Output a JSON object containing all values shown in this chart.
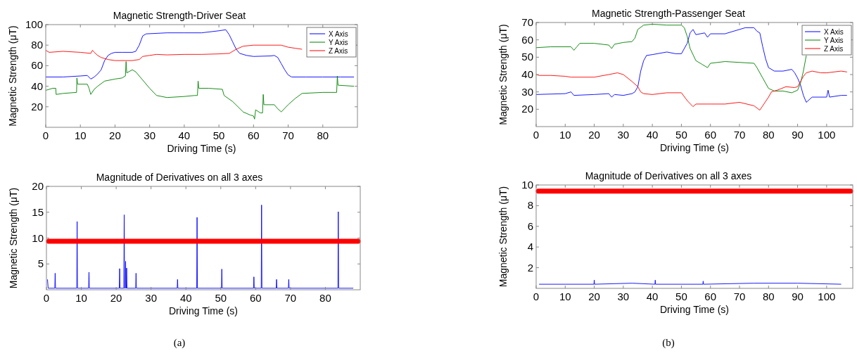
{
  "chart_data": [
    {
      "type": "line",
      "title": "Magnetic Strength-Driver Seat",
      "xlabel": "Driving Time (s)",
      "ylabel": "Magnetic Strength (μT)",
      "xlim": [
        0,
        90
      ],
      "xticks": [
        0,
        10,
        20,
        30,
        40,
        50,
        60,
        70,
        80
      ],
      "ylim": [
        0,
        100
      ],
      "yticks": [
        20,
        40,
        60,
        80,
        100
      ],
      "legend": "top right",
      "series": [
        {
          "name": "X Axis",
          "color": "#0000ff",
          "x": [
            0,
            5,
            10,
            12,
            13,
            14,
            15,
            16,
            17,
            18,
            19,
            20,
            22,
            25,
            26,
            27,
            28,
            29,
            35,
            40,
            45,
            50,
            52,
            53,
            54,
            55,
            56,
            58,
            60,
            65,
            66,
            67,
            68,
            69,
            70,
            71,
            75,
            80,
            85,
            89
          ],
          "values": [
            49,
            49,
            50,
            50.5,
            47,
            49,
            52,
            56,
            65,
            70,
            72,
            73,
            73,
            73,
            74,
            80,
            89,
            91,
            92,
            92,
            92,
            94,
            95,
            90,
            83,
            76,
            72,
            70,
            69,
            69.5,
            70,
            68,
            62,
            56,
            51,
            49,
            49,
            49,
            49,
            49
          ]
        },
        {
          "name": "Y Axis",
          "color": "#008000",
          "x": [
            0,
            2,
            2.9,
            3,
            5,
            8.9,
            9,
            9.2,
            12,
            12.5,
            13,
            14,
            15,
            17,
            20,
            22,
            23,
            23.2,
            23.4,
            25,
            26,
            28,
            30,
            32,
            35,
            40,
            43,
            43.8,
            44,
            44.2,
            47,
            51,
            51.5,
            54,
            57,
            59,
            60,
            60.3,
            60.6,
            62,
            62.6,
            62.8,
            63,
            66,
            67,
            68,
            70,
            72,
            74,
            80,
            84,
            84.2,
            84.4,
            89
          ],
          "values": [
            36,
            38,
            38,
            32,
            33,
            34,
            48,
            42,
            42,
            38,
            32,
            37,
            40,
            45,
            47,
            48,
            50,
            64,
            53,
            56,
            54,
            46,
            38,
            31,
            29,
            30,
            31,
            31,
            45,
            38,
            38,
            37,
            31,
            25,
            15,
            12,
            11,
            8,
            17,
            14,
            14,
            32,
            22,
            22,
            18,
            15,
            22,
            28,
            33,
            34,
            34,
            50,
            41,
            40
          ]
        },
        {
          "name": "Z Axis",
          "color": "#ff0000",
          "x": [
            0,
            1,
            5,
            10,
            13,
            13.5,
            14,
            15,
            16,
            18,
            20,
            25,
            27,
            28,
            30,
            32,
            35,
            40,
            45,
            50,
            53,
            55,
            57,
            60,
            65,
            68,
            70,
            72,
            74
          ],
          "values": [
            75,
            73,
            74,
            73,
            72,
            75,
            73,
            70,
            68,
            66,
            65,
            65,
            66,
            69,
            70,
            71,
            70.5,
            71,
            71,
            71.5,
            72,
            76,
            79,
            80,
            80,
            80,
            78,
            77,
            76
          ]
        }
      ]
    },
    {
      "type": "line",
      "title": "Magnetic Strength-Passenger Seat",
      "xlabel": "Driving Time (s)",
      "ylabel": "Magnetic Strength (μT)",
      "xlim": [
        0,
        109
      ],
      "xticks": [
        0,
        10,
        20,
        30,
        40,
        50,
        60,
        70,
        80,
        90,
        100
      ],
      "ylim": [
        10,
        70
      ],
      "yticks": [
        20,
        30,
        40,
        50,
        60,
        70
      ],
      "legend": "top right",
      "series": [
        {
          "name": "X Axis",
          "color": "#0000ff",
          "x": [
            0,
            10,
            12,
            13,
            20,
            25,
            26,
            27,
            30,
            33,
            34,
            35,
            36,
            37,
            38,
            40,
            45,
            48,
            50,
            52,
            53,
            54,
            55,
            58,
            59,
            60,
            65,
            70,
            72,
            75,
            76,
            77,
            78,
            79,
            80,
            82,
            85,
            88,
            89,
            90,
            91,
            92,
            93,
            95,
            100,
            100.5,
            101,
            105,
            107
          ],
          "values": [
            28.5,
            29,
            30,
            28,
            28.5,
            29,
            27,
            28.5,
            28,
            29,
            30,
            33,
            42,
            48,
            51,
            51.5,
            53,
            52,
            52,
            58,
            64,
            66,
            63,
            64,
            61.5,
            63.5,
            63.5,
            66,
            67,
            67,
            65,
            64,
            56,
            49,
            44,
            42,
            42,
            43,
            41,
            38,
            34,
            28,
            24,
            27,
            27,
            31,
            27,
            28,
            28
          ]
        },
        {
          "name": "Y Axis",
          "color": "#008000",
          "x": [
            0,
            5,
            12,
            13,
            14,
            15,
            20,
            25,
            26,
            27,
            30,
            33,
            34,
            35,
            37,
            40,
            45,
            50,
            51,
            52,
            53,
            55,
            57,
            59,
            60,
            65,
            70,
            75,
            76,
            78,
            80,
            82,
            85,
            88,
            90,
            91,
            92,
            93
          ],
          "values": [
            55.5,
            56,
            56,
            54,
            56,
            58,
            58,
            57,
            55,
            57.5,
            58.5,
            59,
            61,
            66,
            68.5,
            69,
            68.5,
            68.5,
            67,
            62,
            55,
            48,
            46,
            44,
            46.5,
            47.5,
            47,
            46.5,
            44,
            38,
            32,
            30.5,
            30.5,
            29.5,
            31,
            35,
            42,
            51
          ]
        },
        {
          "name": "Z Axis",
          "color": "#ff0000",
          "x": [
            0,
            1,
            5,
            10,
            12,
            20,
            25,
            28,
            30,
            33,
            35,
            36,
            37,
            40,
            45,
            50,
            52,
            54,
            55,
            60,
            65,
            70,
            75,
            77,
            78,
            80,
            81,
            83,
            86,
            89,
            90,
            91,
            92,
            93,
            95,
            98,
            100,
            105,
            107
          ],
          "values": [
            40,
            39.5,
            39.5,
            39,
            38.5,
            38.5,
            40,
            41,
            40,
            36,
            33,
            30,
            29,
            28.5,
            29.5,
            29.5,
            25,
            21.5,
            23,
            23,
            23,
            24,
            22,
            19.5,
            22,
            27,
            30,
            31,
            33,
            32.5,
            33,
            36,
            39,
            41,
            42,
            41,
            41,
            42,
            41.5
          ]
        }
      ]
    },
    {
      "type": "line",
      "title": "Magnitude of Derivatives on all 3 axes",
      "xlabel": "Driving Time (s)",
      "ylabel": "Magnetic Strength (μT)",
      "xlim": [
        0,
        90
      ],
      "xticks": [
        0,
        10,
        20,
        30,
        40,
        50,
        60,
        70,
        80
      ],
      "ylim": [
        0,
        20
      ],
      "yticks": [
        5,
        10,
        15,
        20
      ],
      "annotations": [
        "(a)"
      ],
      "ref_lines": [
        {
          "axis": "y",
          "value": 9.4,
          "color": "#ff0000"
        }
      ],
      "series": [
        {
          "color": "#0000ff",
          "x": [
            0.3,
            0.5,
            2.4,
            2.5,
            2.6,
            8.7,
            8.8,
            8.9,
            12.1,
            12.2,
            12.3,
            20.9,
            21,
            21.1,
            22.2,
            22.3,
            22.4,
            22.6,
            22.7,
            22.8,
            22.9,
            23,
            23.1,
            25.6,
            25.7,
            25.8,
            37.5,
            37.6,
            37.7,
            43.1,
            43.2,
            43.3,
            50.2,
            50.3,
            50.4,
            59.4,
            59.5,
            59.6,
            61.6,
            61.7,
            61.8,
            65.9,
            66,
            66.1,
            69.4,
            69.5,
            69.6,
            83.6,
            83.7,
            83.8,
            88
          ],
          "values": [
            2,
            0.3,
            0.3,
            3.2,
            0.3,
            0.3,
            13.2,
            0.3,
            0.3,
            3.4,
            0.3,
            0.3,
            4.1,
            0.3,
            0.3,
            14.5,
            0.3,
            0.3,
            5.5,
            0.3,
            0.3,
            4.2,
            0.3,
            0.3,
            3.2,
            0.3,
            0.3,
            2,
            0.3,
            0.3,
            14,
            0.3,
            0.3,
            4,
            0.3,
            0.3,
            2.5,
            0.3,
            0.3,
            16.4,
            0.3,
            0.3,
            2,
            0.3,
            0.3,
            2,
            0.3,
            0.3,
            15.1,
            0.3,
            0.3
          ]
        }
      ]
    },
    {
      "type": "line",
      "title": "Magnitude of Derivatives on all 3 axes",
      "xlabel": "Driving Time (s)",
      "ylabel": "Magnetic Strength (μT)",
      "xlim": [
        0,
        109
      ],
      "xticks": [
        0,
        10,
        20,
        30,
        40,
        50,
        60,
        70,
        80,
        90,
        100
      ],
      "ylim": [
        0,
        10
      ],
      "yticks": [
        2,
        4,
        6,
        8,
        10
      ],
      "annotations": [
        "(b)"
      ],
      "ref_lines": [
        {
          "axis": "y",
          "value": 9.4,
          "color": "#ff0000"
        }
      ],
      "series": [
        {
          "color": "#0000ff",
          "x": [
            1,
            10,
            19.9,
            20,
            20.1,
            33,
            40.9,
            41,
            41.1,
            57.4,
            57.5,
            57.6,
            75,
            90,
            105
          ],
          "values": [
            0.4,
            0.4,
            0.4,
            0.8,
            0.4,
            0.5,
            0.4,
            0.8,
            0.4,
            0.4,
            0.7,
            0.4,
            0.5,
            0.5,
            0.4
          ]
        }
      ]
    }
  ]
}
